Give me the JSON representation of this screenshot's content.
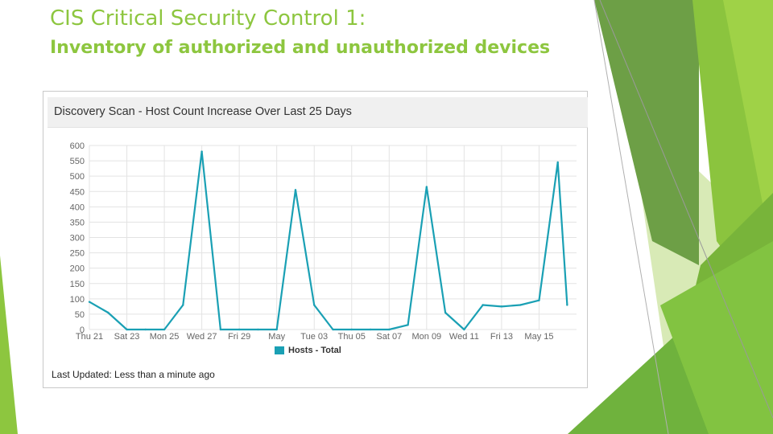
{
  "slide": {
    "title": "CIS Critical Security Control 1:",
    "subtitle": "Inventory of authorized and unauthorized devices"
  },
  "panel": {
    "title": "Discovery Scan - Host Count Increase Over Last 25 Days",
    "last_updated": "Last Updated: Less than a minute ago",
    "legend_label": "Hosts - Total"
  },
  "colors": {
    "accent_green": "#8dc63f",
    "series": "#1aa0b4",
    "grid": "#e3e3e3"
  },
  "chart_data": {
    "type": "line",
    "title": "Discovery Scan - Host Count Increase Over Last 25 Days",
    "xlabel": "",
    "ylabel": "",
    "ylim": [
      0,
      600
    ],
    "yticks": [
      0,
      50,
      100,
      150,
      200,
      250,
      300,
      350,
      400,
      450,
      500,
      550,
      600
    ],
    "grid": true,
    "legend_position": "bottom",
    "x_tick_labels": [
      "Thu 21",
      "Sat 23",
      "Mon 25",
      "Wed 27",
      "Fri 29",
      "May",
      "Tue 03",
      "Thu 05",
      "Sat 07",
      "Mon 09",
      "Wed 11",
      "Fri 13",
      "May 15"
    ],
    "x_range": [
      0,
      26
    ],
    "series": [
      {
        "name": "Hosts - Total",
        "points": [
          [
            0,
            90
          ],
          [
            1,
            55
          ],
          [
            2,
            0
          ],
          [
            3,
            0
          ],
          [
            4,
            0
          ],
          [
            5,
            80
          ],
          [
            6,
            580
          ],
          [
            7,
            0
          ],
          [
            8,
            0
          ],
          [
            9,
            0
          ],
          [
            10,
            0
          ],
          [
            11,
            455
          ],
          [
            12,
            80
          ],
          [
            13,
            0
          ],
          [
            14,
            0
          ],
          [
            15,
            0
          ],
          [
            16,
            0
          ],
          [
            17,
            15
          ],
          [
            18,
            465
          ],
          [
            19,
            55
          ],
          [
            20,
            0
          ],
          [
            21,
            80
          ],
          [
            22,
            75
          ],
          [
            23,
            80
          ],
          [
            24,
            95
          ],
          [
            25,
            545
          ],
          [
            25.5,
            80
          ]
        ]
      }
    ]
  }
}
